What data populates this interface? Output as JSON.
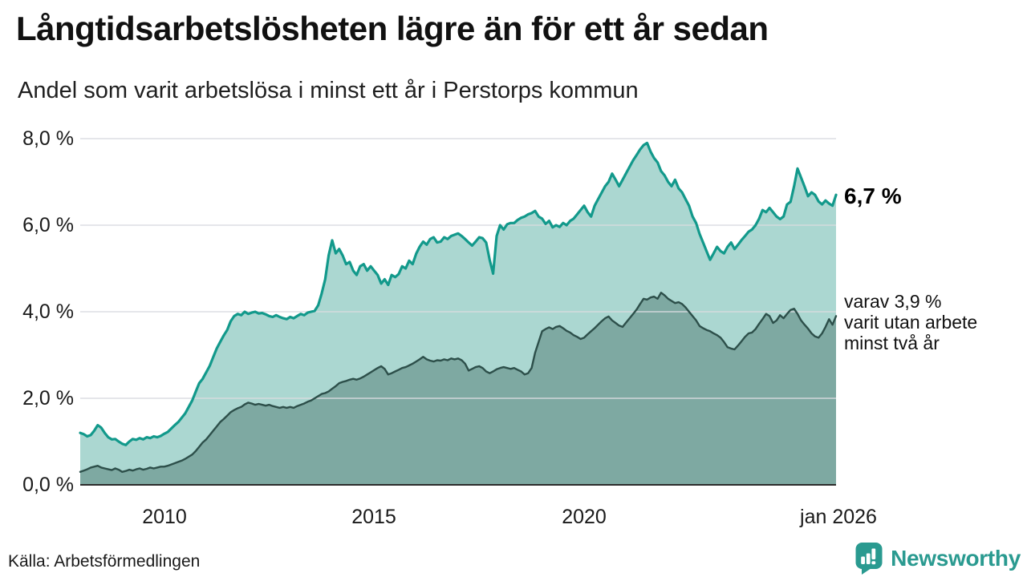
{
  "title": "Långtidsarbetslösheten lägre än för ett år sedan",
  "subtitle": "Andel som varit arbetslösa i minst ett år i Perstorps kommun",
  "source": "Källa: Arbetsförmedlingen",
  "logo": {
    "name": "Newsworthy",
    "icon": "chart-speech-bubble-icon",
    "color": "#2a9a90"
  },
  "annotations": {
    "latest_value": "6,7 %",
    "secondary_line1": "varav 3,9 %",
    "secondary_line2": "varit utan arbete",
    "secondary_line3": "minst två år"
  },
  "colors": {
    "series1_line": "#12998b",
    "series1_fill": "#abd7d1",
    "series2_line": "#2d4f4a",
    "series2_fill": "#7ea9a2",
    "gridline": "#d9dbdf",
    "baseline": "#2b2b2b",
    "text": "#1a1a1a"
  },
  "chart_data": {
    "type": "area",
    "title": "Långtidsarbetslösheten lägre än för ett år sedan",
    "subtitle": "Andel som varit arbetslösa i minst ett år i Perstorps kommun",
    "unit": "%",
    "x_unit": "month",
    "x_start": "2008-01",
    "x_end": "2026-01",
    "ylim": [
      0,
      8.2
    ],
    "grid": true,
    "legend_position": "right-annotations",
    "y_ticks": [
      {
        "value": 8,
        "label": "8,0 %"
      },
      {
        "value": 6,
        "label": "6,0 %"
      },
      {
        "value": 4,
        "label": "4,0 %"
      },
      {
        "value": 2,
        "label": "2,0 %"
      },
      {
        "value": 0,
        "label": "0,0 %"
      }
    ],
    "x_ticks": [
      {
        "value": 2010,
        "label": "2010"
      },
      {
        "value": 2015,
        "label": "2015"
      },
      {
        "value": 2020,
        "label": "2020"
      },
      {
        "value": 2026,
        "label": "jan 2026"
      }
    ],
    "series": [
      {
        "name": "Arbetslösa minst ett år",
        "latest_label": "6,7 %",
        "latest_value": 6.7,
        "values": [
          1.2,
          1.17,
          1.12,
          1.15,
          1.25,
          1.38,
          1.32,
          1.2,
          1.1,
          1.05,
          1.06,
          1.0,
          0.95,
          0.92,
          1.0,
          1.06,
          1.04,
          1.08,
          1.05,
          1.1,
          1.08,
          1.12,
          1.1,
          1.13,
          1.18,
          1.22,
          1.3,
          1.38,
          1.45,
          1.55,
          1.65,
          1.8,
          1.95,
          2.15,
          2.35,
          2.45,
          2.6,
          2.75,
          2.95,
          3.15,
          3.3,
          3.45,
          3.58,
          3.78,
          3.9,
          3.95,
          3.92,
          4.0,
          3.95,
          3.98,
          4.0,
          3.96,
          3.97,
          3.94,
          3.9,
          3.88,
          3.92,
          3.88,
          3.85,
          3.83,
          3.88,
          3.85,
          3.9,
          3.95,
          3.92,
          3.98,
          4.0,
          4.02,
          4.15,
          4.42,
          4.75,
          5.3,
          5.65,
          5.35,
          5.45,
          5.3,
          5.1,
          5.15,
          4.95,
          4.85,
          5.05,
          5.1,
          4.95,
          5.05,
          4.95,
          4.85,
          4.65,
          4.75,
          4.62,
          4.85,
          4.8,
          4.87,
          5.05,
          5.0,
          5.18,
          5.1,
          5.34,
          5.5,
          5.62,
          5.55,
          5.68,
          5.72,
          5.6,
          5.62,
          5.72,
          5.68,
          5.75,
          5.78,
          5.81,
          5.75,
          5.68,
          5.6,
          5.53,
          5.62,
          5.72,
          5.7,
          5.6,
          5.2,
          4.88,
          5.75,
          6.0,
          5.9,
          6.02,
          6.05,
          6.05,
          6.12,
          6.17,
          6.2,
          6.25,
          6.28,
          6.33,
          6.2,
          6.15,
          6.03,
          6.1,
          5.95,
          6.0,
          5.96,
          6.05,
          6.0,
          6.1,
          6.15,
          6.25,
          6.35,
          6.45,
          6.3,
          6.2,
          6.45,
          6.6,
          6.75,
          6.9,
          7.0,
          7.19,
          7.05,
          6.9,
          7.05,
          7.2,
          7.35,
          7.5,
          7.62,
          7.75,
          7.85,
          7.9,
          7.7,
          7.55,
          7.45,
          7.25,
          7.15,
          7.0,
          6.9,
          7.05,
          6.85,
          6.76,
          6.6,
          6.45,
          6.2,
          6.05,
          5.8,
          5.6,
          5.4,
          5.2,
          5.35,
          5.5,
          5.4,
          5.35,
          5.5,
          5.6,
          5.45,
          5.55,
          5.66,
          5.75,
          5.85,
          5.9,
          6.0,
          6.15,
          6.35,
          6.3,
          6.4,
          6.3,
          6.2,
          6.14,
          6.2,
          6.48,
          6.54,
          6.9,
          7.31,
          7.1,
          6.89,
          6.67,
          6.76,
          6.7,
          6.55,
          6.48,
          6.57,
          6.5,
          6.45,
          6.7
        ]
      },
      {
        "name": "varav arbetslösa minst två år",
        "latest_label": "3,9 %",
        "latest_value": 3.9,
        "values": [
          0.3,
          0.33,
          0.36,
          0.4,
          0.42,
          0.44,
          0.4,
          0.38,
          0.36,
          0.34,
          0.38,
          0.35,
          0.3,
          0.32,
          0.35,
          0.33,
          0.36,
          0.38,
          0.35,
          0.37,
          0.4,
          0.38,
          0.4,
          0.42,
          0.42,
          0.44,
          0.47,
          0.5,
          0.53,
          0.56,
          0.6,
          0.65,
          0.7,
          0.78,
          0.88,
          0.98,
          1.05,
          1.15,
          1.25,
          1.35,
          1.45,
          1.52,
          1.6,
          1.68,
          1.73,
          1.77,
          1.8,
          1.86,
          1.9,
          1.88,
          1.85,
          1.87,
          1.85,
          1.83,
          1.85,
          1.82,
          1.8,
          1.78,
          1.8,
          1.78,
          1.8,
          1.78,
          1.82,
          1.85,
          1.88,
          1.92,
          1.95,
          2.0,
          2.05,
          2.1,
          2.12,
          2.16,
          2.22,
          2.28,
          2.35,
          2.38,
          2.4,
          2.43,
          2.45,
          2.43,
          2.46,
          2.5,
          2.55,
          2.6,
          2.65,
          2.7,
          2.74,
          2.68,
          2.55,
          2.58,
          2.62,
          2.66,
          2.7,
          2.72,
          2.76,
          2.8,
          2.85,
          2.9,
          2.96,
          2.9,
          2.87,
          2.85,
          2.88,
          2.87,
          2.9,
          2.88,
          2.92,
          2.9,
          2.92,
          2.88,
          2.8,
          2.64,
          2.68,
          2.72,
          2.74,
          2.7,
          2.62,
          2.58,
          2.62,
          2.67,
          2.7,
          2.72,
          2.7,
          2.68,
          2.7,
          2.66,
          2.62,
          2.55,
          2.58,
          2.7,
          3.05,
          3.3,
          3.55,
          3.6,
          3.64,
          3.6,
          3.65,
          3.67,
          3.62,
          3.56,
          3.52,
          3.46,
          3.42,
          3.37,
          3.4,
          3.48,
          3.55,
          3.62,
          3.7,
          3.78,
          3.85,
          3.89,
          3.8,
          3.74,
          3.68,
          3.65,
          3.75,
          3.85,
          3.95,
          4.05,
          4.18,
          4.3,
          4.28,
          4.33,
          4.35,
          4.3,
          4.44,
          4.38,
          4.3,
          4.25,
          4.2,
          4.22,
          4.18,
          4.1,
          4.0,
          3.9,
          3.8,
          3.67,
          3.62,
          3.58,
          3.55,
          3.5,
          3.46,
          3.4,
          3.3,
          3.18,
          3.15,
          3.13,
          3.22,
          3.32,
          3.42,
          3.5,
          3.52,
          3.6,
          3.72,
          3.83,
          3.95,
          3.9,
          3.74,
          3.8,
          3.92,
          3.85,
          3.95,
          4.04,
          4.07,
          3.95,
          3.8,
          3.7,
          3.61,
          3.5,
          3.43,
          3.4,
          3.5,
          3.65,
          3.83,
          3.7,
          3.9
        ]
      }
    ]
  }
}
